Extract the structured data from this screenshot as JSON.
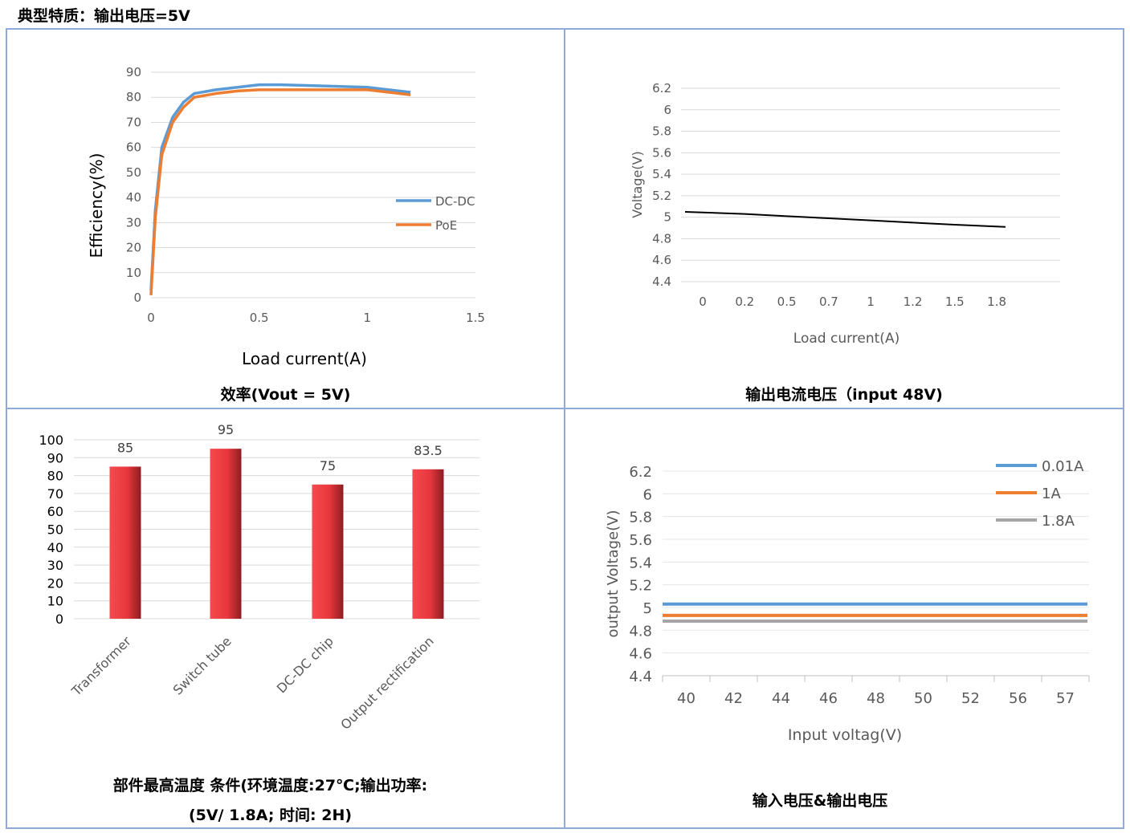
{
  "page": {
    "title": "典型特质：输出电压=5V"
  },
  "colors": {
    "border": "#8eaadb",
    "blue": "#5b9bd5",
    "orange": "#ed7d31",
    "gray": "#a5a5a5",
    "bar": "#e8383d",
    "line": "#000000"
  },
  "captions": {
    "efficiency": "效率(Vout = 5V)",
    "load_regulation": "输出电流电压（input 48V)",
    "temperature_line1": "部件最高温度  条件(环境温度:27℃;输出功率:",
    "temperature_line2": "(5V/ 1.8A;  时间: 2H)",
    "line_regulation": "输入电压&输出电压"
  },
  "chart_data": [
    {
      "id": "efficiency",
      "type": "line",
      "xlabel": "Load current(A)",
      "ylabel": "Efficiency(%)",
      "xlim": [
        0,
        1.5
      ],
      "ylim": [
        0,
        90
      ],
      "x_ticks": [
        "0",
        "0.5",
        "1",
        "1.5"
      ],
      "y_ticks": [
        "0",
        "10",
        "20",
        "30",
        "40",
        "50",
        "60",
        "70",
        "80",
        "90"
      ],
      "legend_position": "right",
      "series": [
        {
          "name": "DC-DC",
          "color": "#5b9bd5",
          "x": [
            0,
            0.02,
            0.05,
            0.1,
            0.15,
            0.2,
            0.3,
            0.4,
            0.5,
            0.6,
            0.8,
            1.0,
            1.2
          ],
          "y": [
            3,
            35,
            60,
            72,
            78,
            81.5,
            83,
            84,
            85,
            85,
            84.5,
            84,
            82
          ]
        },
        {
          "name": "PoE",
          "color": "#ed7d31",
          "x": [
            0,
            0.02,
            0.05,
            0.1,
            0.15,
            0.2,
            0.3,
            0.4,
            0.5,
            0.6,
            0.8,
            1.0,
            1.2
          ],
          "y": [
            1,
            32,
            57,
            70,
            76,
            80,
            81.5,
            82.5,
            83,
            83,
            83,
            83,
            81
          ]
        }
      ]
    },
    {
      "id": "load_regulation",
      "type": "line",
      "xlabel": "Load current(A)",
      "ylabel": "Voltage(V)",
      "categories": [
        "0",
        "0.2",
        "0.5",
        "0.7",
        "1",
        "1.2",
        "1.5",
        "1.8"
      ],
      "ylim": [
        4.4,
        6.2
      ],
      "y_ticks": [
        "4.4",
        "4.6",
        "4.8",
        "5",
        "5.2",
        "5.4",
        "5.6",
        "5.8",
        "6",
        "6.2"
      ],
      "grid": true,
      "series": [
        {
          "values": [
            5.05,
            5.03,
            5.01,
            4.99,
            4.97,
            4.95,
            4.93,
            4.91
          ]
        }
      ]
    },
    {
      "id": "temperature",
      "type": "bar",
      "categories": [
        "Transformer",
        "Switch tube",
        "DC-DC chip",
        "Output rectification"
      ],
      "values": [
        85,
        95,
        75,
        83.5
      ],
      "value_labels": [
        "85",
        "95",
        "75",
        "83.5"
      ],
      "ylim": [
        0,
        100
      ],
      "y_ticks": [
        "0",
        "10",
        "20",
        "30",
        "40",
        "50",
        "60",
        "70",
        "80",
        "90",
        "100"
      ],
      "grid": true
    },
    {
      "id": "line_regulation",
      "type": "line",
      "xlabel": "Input voltag(V)",
      "ylabel": "output Voltage(V)",
      "categories": [
        "40",
        "42",
        "44",
        "46",
        "48",
        "50",
        "52",
        "56",
        "57"
      ],
      "ylim": [
        4.4,
        6.2
      ],
      "y_ticks": [
        "4.4",
        "4.6",
        "4.8",
        "5",
        "5.2",
        "5.4",
        "5.6",
        "5.8",
        "6",
        "6.2"
      ],
      "legend_position": "top-right",
      "grid": true,
      "series": [
        {
          "name": "0.01A",
          "color": "#5b9bd5",
          "values": [
            5.03,
            5.03,
            5.03,
            5.03,
            5.03,
            5.03,
            5.03,
            5.03,
            5.03
          ]
        },
        {
          "name": "1A",
          "color": "#ed7d31",
          "values": [
            4.93,
            4.93,
            4.93,
            4.93,
            4.93,
            4.93,
            4.93,
            4.93,
            4.93
          ]
        },
        {
          "name": "1.8A",
          "color": "#a5a5a5",
          "values": [
            4.88,
            4.88,
            4.88,
            4.88,
            4.88,
            4.88,
            4.88,
            4.88,
            4.88
          ]
        }
      ]
    }
  ]
}
